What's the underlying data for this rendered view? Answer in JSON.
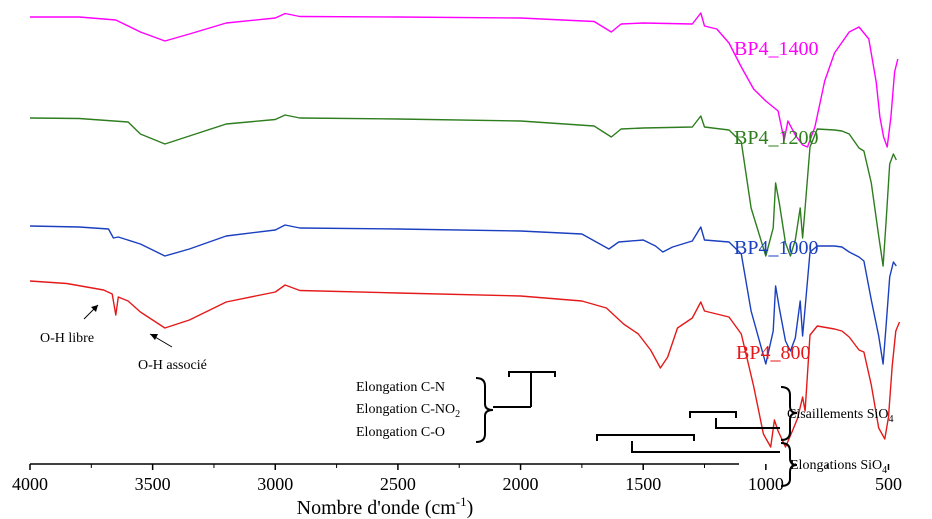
{
  "chart_data": {
    "type": "line",
    "xlabel": "Nombre d'onde (cm",
    "xlabel_sup": "-1",
    "xlabel_end": ")",
    "xlim": [
      4000,
      400
    ],
    "x_ticks": [
      4000,
      3500,
      3000,
      2500,
      2000,
      1500,
      1000,
      500
    ],
    "y_axis": "none",
    "series": [
      {
        "name": "BP4_1400",
        "color": "#ff00ff",
        "points": [
          [
            4000,
            0.0
          ],
          [
            3800,
            0.0
          ],
          [
            3650,
            -0.3
          ],
          [
            3550,
            -1.5
          ],
          [
            3450,
            -2.4
          ],
          [
            3350,
            -1.7
          ],
          [
            3200,
            -0.6
          ],
          [
            3000,
            -0.1
          ],
          [
            2960,
            0.35
          ],
          [
            2900,
            0.05
          ],
          [
            2500,
            0.0
          ],
          [
            2000,
            -0.1
          ],
          [
            1700,
            -0.45
          ],
          [
            1630,
            -1.5
          ],
          [
            1590,
            -0.7
          ],
          [
            1500,
            -0.6
          ],
          [
            1300,
            -0.7
          ],
          [
            1265,
            0.4
          ],
          [
            1250,
            -0.9
          ],
          [
            1200,
            -1.2
          ],
          [
            1150,
            -2.6
          ],
          [
            1100,
            -5.0
          ],
          [
            1050,
            -7.2
          ],
          [
            1000,
            -8.4
          ],
          [
            950,
            -9.4
          ],
          [
            925,
            -12.3
          ],
          [
            910,
            -10.4
          ],
          [
            880,
            -11.8
          ],
          [
            850,
            -12.8
          ],
          [
            830,
            -13.0
          ],
          [
            800,
            -11.0
          ],
          [
            760,
            -6.4
          ],
          [
            720,
            -3.6
          ],
          [
            660,
            -1.5
          ],
          [
            620,
            -1.0
          ],
          [
            580,
            -2.2
          ],
          [
            550,
            -6.5
          ],
          [
            535,
            -10.0
          ],
          [
            520,
            -12.0
          ],
          [
            505,
            -13.0
          ],
          [
            490,
            -10.0
          ],
          [
            475,
            -5.5
          ],
          [
            462,
            -4.2
          ]
        ]
      },
      {
        "name": "BP4_1200",
        "color": "#2e7d1e",
        "points": [
          [
            4000,
            0.0
          ],
          [
            3800,
            -0.05
          ],
          [
            3600,
            -0.4
          ],
          [
            3550,
            -1.6
          ],
          [
            3450,
            -2.6
          ],
          [
            3350,
            -1.8
          ],
          [
            3200,
            -0.6
          ],
          [
            3000,
            -0.15
          ],
          [
            2960,
            0.3
          ],
          [
            2900,
            0.0
          ],
          [
            2500,
            -0.1
          ],
          [
            2000,
            -0.3
          ],
          [
            1700,
            -0.8
          ],
          [
            1630,
            -1.9
          ],
          [
            1590,
            -1.1
          ],
          [
            1500,
            -1.0
          ],
          [
            1300,
            -0.9
          ],
          [
            1265,
            0.2
          ],
          [
            1250,
            -0.9
          ],
          [
            1150,
            -1.2
          ],
          [
            1100,
            -2.4
          ],
          [
            1060,
            -9.0
          ],
          [
            1000,
            -13.8
          ],
          [
            970,
            -11.0
          ],
          [
            960,
            -6.5
          ],
          [
            945,
            -8.5
          ],
          [
            920,
            -12.5
          ],
          [
            900,
            -13.8
          ],
          [
            880,
            -12.2
          ],
          [
            860,
            -9.0
          ],
          [
            850,
            -12.0
          ],
          [
            840,
            -9.0
          ],
          [
            820,
            -2.9
          ],
          [
            790,
            -1.1
          ],
          [
            720,
            -1.2
          ],
          [
            690,
            -1.3
          ],
          [
            660,
            -1.6
          ],
          [
            620,
            -3.0
          ],
          [
            600,
            -3.3
          ],
          [
            570,
            -6.5
          ],
          [
            540,
            -11.8
          ],
          [
            522,
            -14.8
          ],
          [
            510,
            -10.5
          ],
          [
            495,
            -4.6
          ],
          [
            480,
            -3.6
          ],
          [
            468,
            -4.2
          ]
        ]
      },
      {
        "name": "BP4_1000",
        "color": "#1a3fbf",
        "points": [
          [
            4000,
            0.0
          ],
          [
            3800,
            -0.1
          ],
          [
            3680,
            -0.3
          ],
          [
            3660,
            -1.2
          ],
          [
            3640,
            -1.1
          ],
          [
            3550,
            -1.8
          ],
          [
            3450,
            -3.0
          ],
          [
            3350,
            -2.3
          ],
          [
            3200,
            -1.0
          ],
          [
            3000,
            -0.4
          ],
          [
            2960,
            0.1
          ],
          [
            2900,
            -0.2
          ],
          [
            2500,
            -0.3
          ],
          [
            2000,
            -0.5
          ],
          [
            1750,
            -0.8
          ],
          [
            1640,
            -2.3
          ],
          [
            1600,
            -1.6
          ],
          [
            1500,
            -1.4
          ],
          [
            1450,
            -2.0
          ],
          [
            1420,
            -2.6
          ],
          [
            1380,
            -2.1
          ],
          [
            1300,
            -1.5
          ],
          [
            1265,
            -0.1
          ],
          [
            1250,
            -1.4
          ],
          [
            1150,
            -1.6
          ],
          [
            1100,
            -2.8
          ],
          [
            1060,
            -8.5
          ],
          [
            1000,
            -13.8
          ],
          [
            970,
            -10.5
          ],
          [
            960,
            -6.0
          ],
          [
            945,
            -8.2
          ],
          [
            920,
            -11.5
          ],
          [
            900,
            -12.5
          ],
          [
            880,
            -11.2
          ],
          [
            860,
            -7.5
          ],
          [
            850,
            -11.0
          ],
          [
            840,
            -8.2
          ],
          [
            820,
            -2.6
          ],
          [
            790,
            -2.0
          ],
          [
            720,
            -2.0
          ],
          [
            690,
            -2.1
          ],
          [
            660,
            -2.6
          ],
          [
            620,
            -3.1
          ],
          [
            600,
            -3.5
          ],
          [
            570,
            -7.4
          ],
          [
            540,
            -11.0
          ],
          [
            522,
            -13.8
          ],
          [
            510,
            -10.1
          ],
          [
            495,
            -5.1
          ],
          [
            480,
            -3.6
          ],
          [
            468,
            -4.0
          ]
        ]
      },
      {
        "name": "BP4_800",
        "color": "#e41a1a",
        "points": [
          [
            4000,
            0.0
          ],
          [
            3850,
            -0.25
          ],
          [
            3700,
            -0.9
          ],
          [
            3665,
            -1.3
          ],
          [
            3650,
            -3.4
          ],
          [
            3640,
            -1.6
          ],
          [
            3600,
            -2.0
          ],
          [
            3550,
            -3.1
          ],
          [
            3450,
            -4.7
          ],
          [
            3350,
            -3.9
          ],
          [
            3200,
            -2.1
          ],
          [
            3000,
            -1.1
          ],
          [
            2960,
            -0.4
          ],
          [
            2900,
            -0.95
          ],
          [
            2500,
            -1.2
          ],
          [
            2000,
            -1.5
          ],
          [
            1750,
            -2.0
          ],
          [
            1650,
            -2.7
          ],
          [
            1580,
            -4.3
          ],
          [
            1520,
            -5.3
          ],
          [
            1470,
            -6.9
          ],
          [
            1430,
            -8.7
          ],
          [
            1400,
            -7.6
          ],
          [
            1360,
            -4.7
          ],
          [
            1300,
            -3.7
          ],
          [
            1265,
            -2.1
          ],
          [
            1250,
            -3.0
          ],
          [
            1150,
            -3.6
          ],
          [
            1100,
            -5.3
          ],
          [
            1050,
            -10.5
          ],
          [
            1010,
            -15.3
          ],
          [
            980,
            -16.6
          ],
          [
            965,
            -13.9
          ],
          [
            950,
            -15.0
          ],
          [
            920,
            -16.6
          ],
          [
            890,
            -14.9
          ],
          [
            870,
            -13.7
          ],
          [
            850,
            -11.6
          ],
          [
            840,
            -13.0
          ],
          [
            820,
            -5.4
          ],
          [
            790,
            -4.5
          ],
          [
            720,
            -4.8
          ],
          [
            690,
            -5.0
          ],
          [
            660,
            -5.6
          ],
          [
            620,
            -6.9
          ],
          [
            600,
            -7.1
          ],
          [
            570,
            -10.4
          ],
          [
            540,
            -14.7
          ],
          [
            515,
            -15.8
          ],
          [
            500,
            -13.6
          ],
          [
            485,
            -8.5
          ],
          [
            470,
            -5.0
          ],
          [
            455,
            -4.1
          ]
        ]
      }
    ],
    "series_labels": [
      "BP4_1400",
      "BP4_1200",
      "BP4_1000",
      "BP4_800"
    ],
    "annotations": {
      "oh_libre": "O-H libre",
      "oh_associe": "O-H associé",
      "group_line1": "Elongation C-N",
      "group_line2_main": "Elongation C-NO",
      "group_line2_sub": "2",
      "group_line3": "Elongation C-O",
      "cisaillement_main": "Cisaillements SiO",
      "cisaillement_sub": "4",
      "elongation_main": "Elongations SiO",
      "elongation_sub": "4"
    }
  }
}
